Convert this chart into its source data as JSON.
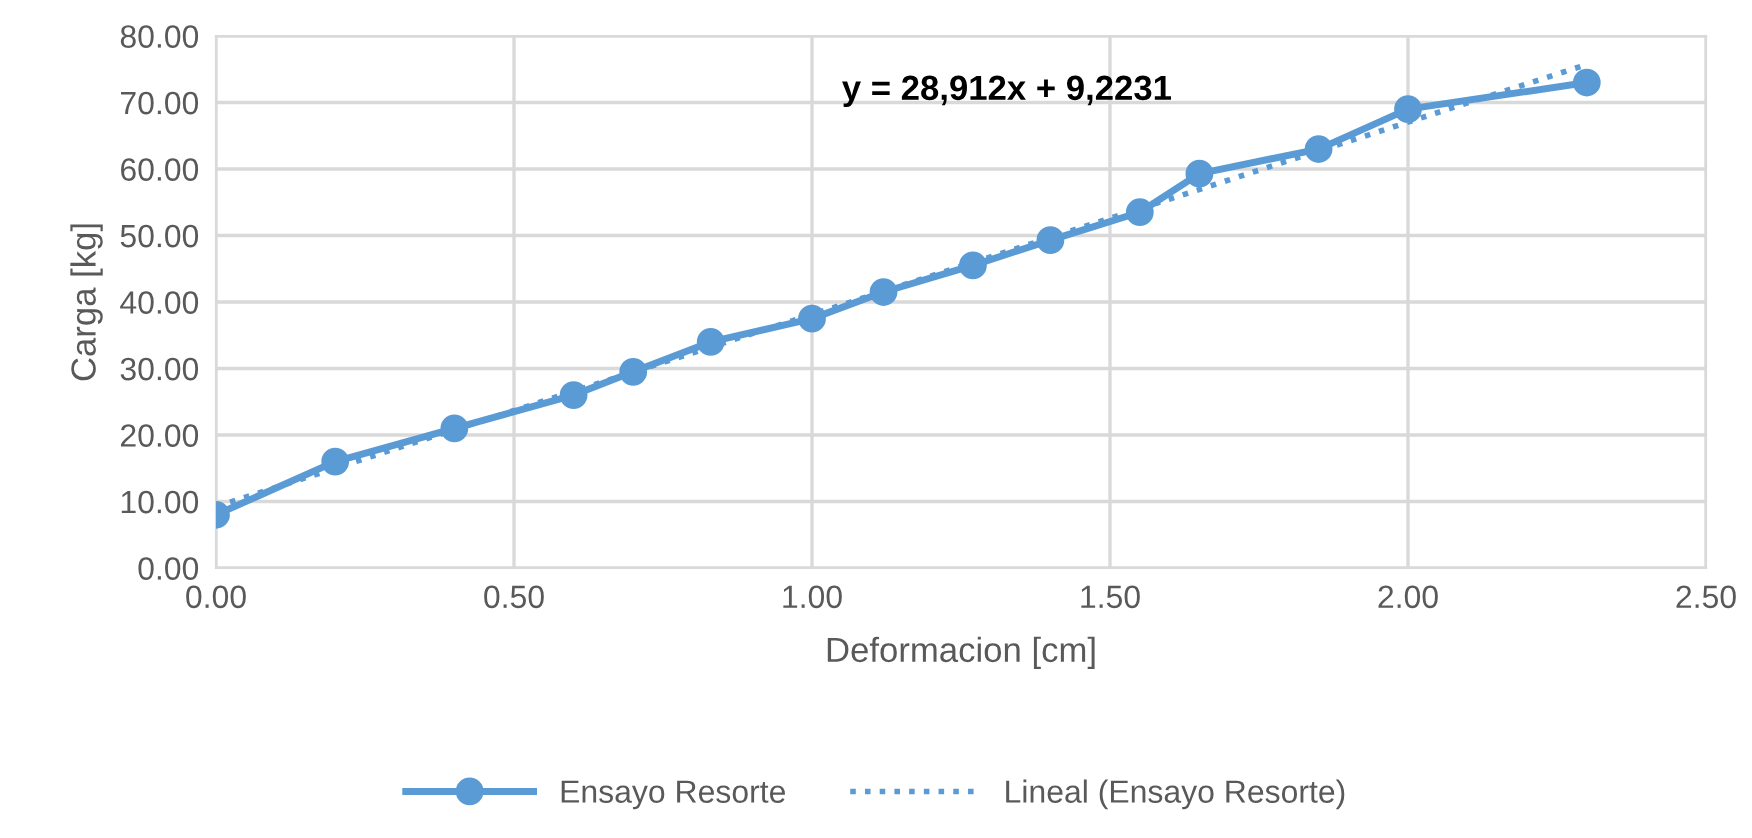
{
  "chart_data": {
    "type": "line",
    "xlabel": "Deformacion [cm]",
    "ylabel": "Carga [kg]",
    "xlim": [
      0,
      2.5
    ],
    "ylim": [
      0,
      80
    ],
    "xticks": [
      {
        "value": 0,
        "label": "0.00"
      },
      {
        "value": 0.5,
        "label": "0.50"
      },
      {
        "value": 1,
        "label": "1.00"
      },
      {
        "value": 1.5,
        "label": "1.50"
      },
      {
        "value": 2,
        "label": "2.00"
      },
      {
        "value": 2.5,
        "label": "2.50"
      }
    ],
    "yticks": [
      {
        "value": 0,
        "label": "0.00"
      },
      {
        "value": 10,
        "label": "10.00"
      },
      {
        "value": 20,
        "label": "20.00"
      },
      {
        "value": 30,
        "label": "30.00"
      },
      {
        "value": 40,
        "label": "40.00"
      },
      {
        "value": 50,
        "label": "50.00"
      },
      {
        "value": 60,
        "label": "60.00"
      },
      {
        "value": 70,
        "label": "70.00"
      },
      {
        "value": 80,
        "label": "80.00"
      }
    ],
    "grid": true,
    "legend": "bottom",
    "annotations": [
      "y = 28,912x + 9,2231"
    ],
    "series": [
      {
        "name": "Ensayo Resorte",
        "color": "#5b9bd5",
        "marker": "circle",
        "line_style": "solid",
        "x": [
          0,
          0.2,
          0.4,
          0.6,
          0.7,
          0.83,
          1.0,
          1.12,
          1.27,
          1.4,
          1.55,
          1.65,
          1.85,
          2.0,
          2.3
        ],
        "values": [
          8,
          16,
          21,
          26,
          29.5,
          34,
          37.5,
          41.5,
          45.5,
          49.3,
          53.5,
          59.3,
          63,
          69,
          73
        ]
      },
      {
        "name": "Lineal (Ensayo Resorte)",
        "color": "#5b9bd5",
        "marker": "none",
        "line_style": "dotted",
        "x": [
          0,
          2.3
        ],
        "values": [
          9.2231,
          75.72
        ]
      }
    ]
  }
}
